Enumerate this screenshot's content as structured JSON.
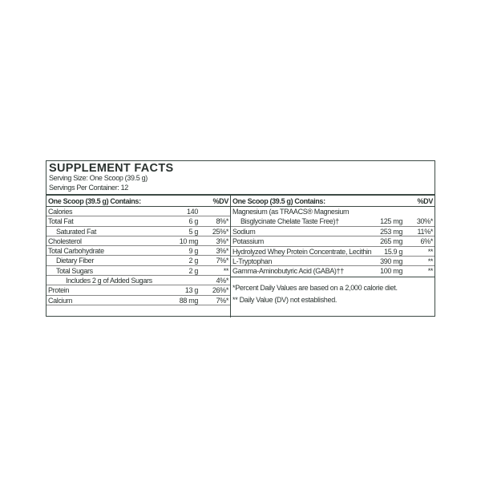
{
  "title": "SUPPLEMENT FACTS",
  "serving_size": "Serving Size: One Scoop (39.5 g)",
  "servings_per_container": "Servings Per Container: 12",
  "left": {
    "header": "One Scoop (39.5 g) Contains:",
    "dv_header": "%DV",
    "rows": [
      {
        "label": "Calories",
        "amount": "140",
        "dv": ""
      },
      {
        "label": "Total Fat",
        "amount": "6 g",
        "dv": "8%*"
      },
      {
        "label": "Saturated Fat",
        "amount": "5 g",
        "dv": "25%*"
      },
      {
        "label": "Cholesterol",
        "amount": "10 mg",
        "dv": "3%*"
      },
      {
        "label": "Total Carbohydrate",
        "amount": "9 g",
        "dv": "3%*"
      },
      {
        "label": "Dietary Fiber",
        "amount": "2 g",
        "dv": "7%*"
      },
      {
        "label": "Total Sugars",
        "amount": "2 g",
        "dv": "**"
      },
      {
        "label": "Includes 2 g of Added Sugars",
        "amount": "",
        "dv": "4%*"
      },
      {
        "label": "Protein",
        "amount": "13 g",
        "dv": "26%*"
      },
      {
        "label": "Calcium",
        "amount": "88 mg",
        "dv": "7%*"
      }
    ]
  },
  "right": {
    "header": "One Scoop (39.5 g) Contains:",
    "dv_header": "%DV",
    "magnesium": {
      "line1": "Magnesium (as TRAACS® Magnesium",
      "line2": "Bisglycinate Chelate Taste Free)†",
      "amount": "125 mg",
      "dv": "30%*"
    },
    "rows": [
      {
        "label": "Sodium",
        "amount": "253 mg",
        "dv": "11%*"
      },
      {
        "label": "Potassium",
        "amount": "265 mg",
        "dv": "6%*"
      },
      {
        "label": "Hydrolyzed Whey Protein Concentrate, Lecithin",
        "amount": "15.9 g",
        "dv": "**"
      },
      {
        "label": "L-Tryptophan",
        "amount": "390 mg",
        "dv": "**"
      },
      {
        "label": "Gamma-Aminobutyric Acid (GABA)††",
        "amount": "100 mg",
        "dv": "**"
      }
    ],
    "footnotes": [
      "*Percent Daily Values are based on a 2,000 calorie diet.",
      "** Daily Value (DV) not established."
    ]
  }
}
